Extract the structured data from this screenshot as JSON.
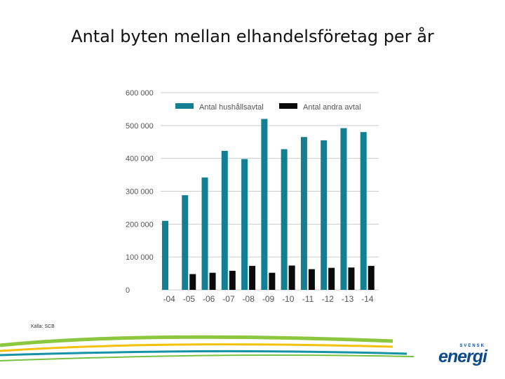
{
  "slide": {
    "title": "Antal byten mellan elhandelsföretag per år",
    "source": "Källa: SCB"
  },
  "logo": {
    "small": "SVENSK",
    "main": "energi"
  },
  "colors": {
    "teal": "#137f92",
    "black": "#0a0a0a",
    "grid": "#cccccc"
  },
  "chart_data": {
    "type": "bar",
    "categories": [
      "-04",
      "-05",
      "-06",
      "-07",
      "-08",
      "-09",
      "-10",
      "-11",
      "-12",
      "-13",
      "-14"
    ],
    "series": [
      {
        "name": "Antal hushållsavtal",
        "values": [
          210000,
          288000,
          342000,
          423000,
          398000,
          520000,
          428000,
          465000,
          455000,
          492000,
          480000
        ]
      },
      {
        "name": "Antal andra avtal",
        "values": [
          null,
          48000,
          52000,
          58000,
          73000,
          52000,
          74000,
          63000,
          67000,
          68000,
          73000
        ]
      }
    ],
    "yticks": [
      "0",
      "100 000",
      "200 000",
      "300 000",
      "400 000",
      "500 000",
      "600 000"
    ],
    "ylim": [
      0,
      600000
    ],
    "grid": true,
    "legend": "top"
  }
}
